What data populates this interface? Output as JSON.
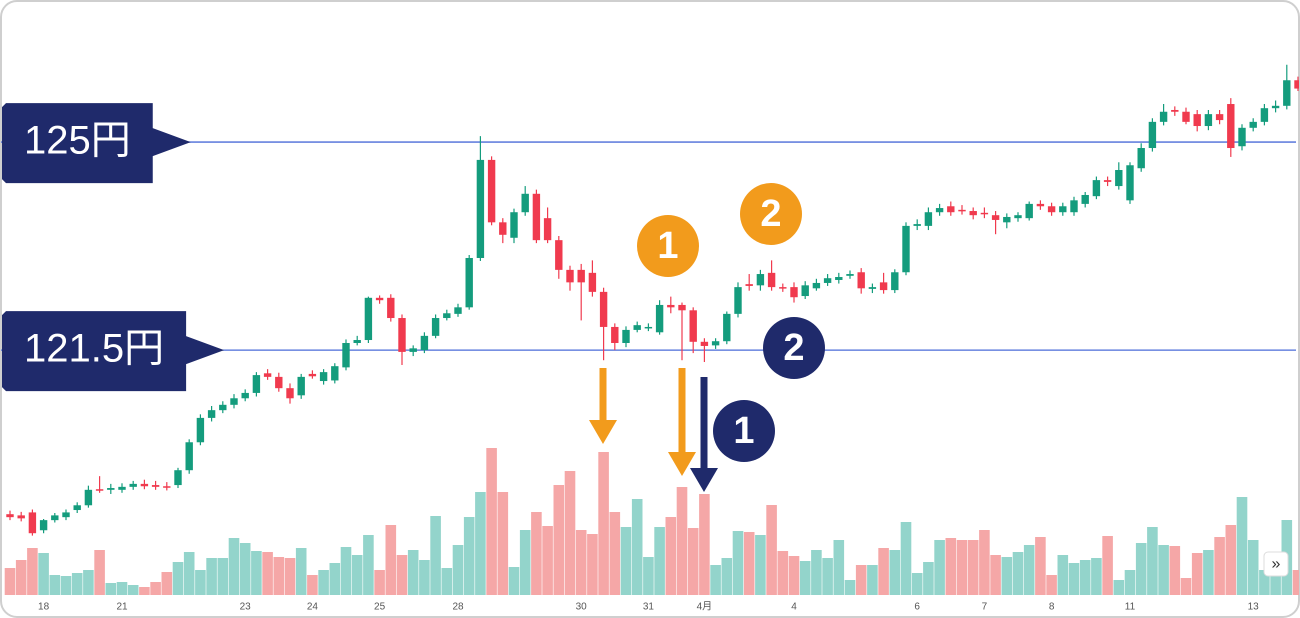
{
  "chart_data": {
    "type": "candlestick",
    "categories": [
      null,
      null,
      null,
      "18",
      null,
      null,
      null,
      null,
      null,
      null,
      "21",
      null,
      null,
      null,
      null,
      null,
      null,
      null,
      null,
      null,
      null,
      "23",
      null,
      null,
      null,
      null,
      null,
      "24",
      null,
      null,
      null,
      null,
      null,
      "25",
      null,
      null,
      null,
      null,
      null,
      null,
      "28",
      null,
      null,
      null,
      null,
      null,
      null,
      null,
      null,
      null,
      null,
      "30",
      null,
      null,
      null,
      null,
      null,
      "31",
      null,
      null,
      null,
      null,
      "4月",
      null,
      null,
      null,
      null,
      null,
      null,
      null,
      "4",
      null,
      null,
      null,
      null,
      null,
      null,
      null,
      null,
      null,
      null,
      "6",
      null,
      null,
      null,
      null,
      null,
      "7",
      null,
      null,
      null,
      null,
      null,
      "8",
      null,
      null,
      null,
      null,
      null,
      null,
      "11",
      null,
      null,
      null,
      null,
      null,
      null,
      null,
      null,
      null,
      null,
      "13",
      null,
      null,
      null,
      null
    ],
    "ohlc": [
      [
        118.74,
        118.8,
        118.64,
        118.69
      ],
      [
        118.72,
        118.78,
        118.62,
        118.67
      ],
      [
        118.77,
        118.82,
        118.38,
        118.42
      ],
      [
        118.47,
        118.66,
        118.42,
        118.64
      ],
      [
        118.64,
        118.76,
        118.6,
        118.72
      ],
      [
        118.69,
        118.82,
        118.64,
        118.77
      ],
      [
        118.81,
        118.94,
        118.76,
        118.89
      ],
      [
        118.89,
        119.22,
        118.85,
        119.15
      ],
      [
        119.16,
        119.38,
        119.1,
        119.15
      ],
      [
        119.15,
        119.25,
        119.08,
        119.18
      ],
      [
        119.15,
        119.26,
        119.1,
        119.2
      ],
      [
        119.2,
        119.3,
        119.15,
        119.25
      ],
      [
        119.25,
        119.32,
        119.16,
        119.21
      ],
      [
        119.23,
        119.3,
        119.15,
        119.2
      ],
      [
        119.21,
        119.28,
        119.14,
        119.2
      ],
      [
        119.23,
        119.52,
        119.18,
        119.48
      ],
      [
        119.48,
        120.0,
        119.42,
        119.95
      ],
      [
        119.95,
        120.42,
        119.9,
        120.36
      ],
      [
        120.36,
        120.56,
        120.3,
        120.49
      ],
      [
        120.49,
        120.64,
        120.44,
        120.58
      ],
      [
        120.58,
        120.76,
        120.52,
        120.69
      ],
      [
        120.69,
        120.84,
        120.64,
        120.78
      ],
      [
        120.78,
        121.13,
        120.72,
        121.08
      ],
      [
        121.11,
        121.18,
        121.0,
        121.05
      ],
      [
        121.05,
        121.12,
        120.8,
        120.86
      ],
      [
        120.86,
        120.94,
        120.6,
        120.69
      ],
      [
        120.74,
        121.1,
        120.68,
        121.05
      ],
      [
        121.1,
        121.16,
        121.02,
        121.06
      ],
      [
        120.98,
        121.18,
        120.92,
        121.13
      ],
      [
        120.99,
        121.28,
        120.94,
        121.23
      ],
      [
        121.21,
        121.68,
        121.16,
        121.62
      ],
      [
        121.62,
        121.74,
        121.58,
        121.67
      ],
      [
        121.67,
        122.4,
        121.62,
        122.38
      ],
      [
        122.38,
        122.42,
        122.28,
        122.34
      ],
      [
        122.38,
        122.44,
        121.98,
        122.04
      ],
      [
        122.04,
        122.1,
        121.25,
        121.47
      ],
      [
        121.47,
        121.58,
        121.4,
        121.53
      ],
      [
        121.5,
        121.8,
        121.45,
        121.74
      ],
      [
        121.74,
        122.1,
        121.7,
        122.04
      ],
      [
        122.04,
        122.18,
        122.0,
        122.12
      ],
      [
        122.11,
        122.28,
        122.06,
        122.22
      ],
      [
        122.22,
        123.1,
        122.18,
        123.05
      ],
      [
        123.05,
        125.1,
        123.0,
        124.7
      ],
      [
        124.7,
        124.76,
        123.6,
        123.65
      ],
      [
        123.65,
        123.72,
        123.3,
        123.44
      ],
      [
        123.39,
        123.88,
        123.3,
        123.82
      ],
      [
        123.82,
        124.26,
        123.76,
        124.13
      ],
      [
        124.13,
        124.2,
        123.3,
        123.35
      ],
      [
        123.72,
        123.9,
        123.3,
        123.35
      ],
      [
        123.35,
        123.42,
        122.7,
        122.85
      ],
      [
        122.85,
        122.92,
        122.5,
        122.64
      ],
      [
        122.85,
        122.95,
        122.0,
        122.64
      ],
      [
        122.8,
        123.01,
        122.4,
        122.48
      ],
      [
        122.48,
        122.55,
        121.33,
        121.89
      ],
      [
        121.89,
        121.95,
        121.5,
        121.62
      ],
      [
        121.62,
        121.9,
        121.55,
        121.84
      ],
      [
        121.84,
        121.98,
        121.8,
        121.92
      ],
      [
        121.87,
        121.95,
        121.82,
        121.89
      ],
      [
        121.8,
        122.34,
        121.76,
        122.26
      ],
      [
        122.26,
        122.4,
        122.12,
        122.22
      ],
      [
        122.26,
        122.3,
        121.33,
        122.17
      ],
      [
        122.17,
        122.22,
        121.45,
        121.64
      ],
      [
        121.64,
        121.7,
        121.3,
        121.57
      ],
      [
        121.58,
        121.7,
        121.52,
        121.65
      ],
      [
        121.65,
        122.15,
        121.6,
        122.11
      ],
      [
        122.11,
        122.64,
        122.05,
        122.56
      ],
      [
        122.61,
        122.78,
        122.5,
        122.58
      ],
      [
        122.59,
        122.85,
        122.5,
        122.78
      ],
      [
        122.8,
        123.01,
        122.5,
        122.56
      ],
      [
        122.56,
        122.62,
        122.48,
        122.54
      ],
      [
        122.56,
        122.64,
        122.3,
        122.39
      ],
      [
        122.41,
        122.66,
        122.36,
        122.59
      ],
      [
        122.54,
        122.7,
        122.5,
        122.63
      ],
      [
        122.63,
        122.78,
        122.58,
        122.71
      ],
      [
        122.68,
        122.8,
        122.62,
        122.73
      ],
      [
        122.75,
        122.84,
        122.7,
        122.78
      ],
      [
        122.81,
        122.88,
        122.45,
        122.54
      ],
      [
        122.53,
        122.62,
        122.46,
        122.56
      ],
      [
        122.64,
        122.8,
        122.45,
        122.51
      ],
      [
        122.51,
        122.86,
        122.46,
        122.81
      ],
      [
        122.81,
        123.65,
        122.76,
        123.59
      ],
      [
        123.59,
        123.7,
        123.52,
        123.62
      ],
      [
        123.59,
        123.9,
        123.52,
        123.82
      ],
      [
        123.82,
        123.96,
        123.76,
        123.89
      ],
      [
        123.92,
        124.0,
        123.76,
        123.82
      ],
      [
        123.86,
        123.94,
        123.78,
        123.84
      ],
      [
        123.84,
        123.9,
        123.7,
        123.77
      ],
      [
        123.81,
        123.9,
        123.72,
        123.79
      ],
      [
        123.77,
        123.84,
        123.45,
        123.69
      ],
      [
        123.65,
        123.8,
        123.55,
        123.74
      ],
      [
        123.72,
        123.82,
        123.66,
        123.77
      ],
      [
        123.72,
        124.0,
        123.68,
        123.96
      ],
      [
        123.96,
        124.02,
        123.86,
        123.92
      ],
      [
        123.92,
        123.98,
        123.76,
        123.82
      ],
      [
        123.82,
        123.98,
        123.76,
        123.92
      ],
      [
        123.82,
        124.08,
        123.76,
        124.02
      ],
      [
        123.96,
        124.16,
        123.9,
        124.11
      ],
      [
        124.09,
        124.42,
        124.04,
        124.36
      ],
      [
        124.36,
        124.42,
        124.26,
        124.33
      ],
      [
        124.26,
        124.66,
        124.2,
        124.53
      ],
      [
        124.02,
        124.66,
        123.96,
        124.61
      ],
      [
        124.56,
        124.98,
        124.5,
        124.9
      ],
      [
        124.9,
        125.4,
        124.84,
        125.34
      ],
      [
        125.34,
        125.64,
        125.28,
        125.51
      ],
      [
        125.54,
        125.6,
        125.44,
        125.51
      ],
      [
        125.51,
        125.58,
        125.3,
        125.34
      ],
      [
        125.47,
        125.54,
        125.18,
        125.27
      ],
      [
        125.27,
        125.54,
        125.2,
        125.47
      ],
      [
        125.47,
        125.54,
        125.3,
        125.37
      ],
      [
        125.64,
        125.74,
        124.75,
        124.9
      ],
      [
        124.93,
        125.3,
        124.86,
        125.24
      ],
      [
        125.24,
        125.4,
        125.18,
        125.34
      ],
      [
        125.34,
        125.64,
        125.28,
        125.57
      ],
      [
        125.57,
        125.7,
        125.5,
        125.61
      ],
      [
        125.61,
        126.3,
        125.55,
        126.04
      ],
      [
        126.04,
        126.1,
        125.86,
        125.9
      ]
    ],
    "volume": [
      27,
      35,
      47,
      42,
      20,
      19,
      22,
      25,
      45,
      12,
      13,
      10,
      8,
      13,
      23,
      33,
      43,
      25,
      37,
      37,
      57,
      52,
      44,
      43,
      38,
      37,
      47,
      20,
      25,
      32,
      48,
      40,
      60,
      25,
      70,
      40,
      45,
      35,
      79,
      27,
      50,
      78,
      103,
      147,
      103,
      28,
      65,
      83,
      69,
      110,
      124,
      65,
      61,
      143,
      83,
      68,
      96,
      38,
      68,
      78,
      108,
      67,
      101,
      30,
      37,
      64,
      63,
      60,
      90,
      44,
      39,
      34,
      45,
      37,
      55,
      15,
      30,
      30,
      47,
      45,
      73,
      22,
      33,
      55,
      57,
      55,
      55,
      65,
      40,
      38,
      43,
      50,
      58,
      20,
      40,
      32,
      35,
      37,
      59,
      15,
      25,
      52,
      68,
      50,
      49,
      17,
      42,
      45,
      58,
      70,
      98,
      55,
      25,
      25,
      75,
      25
    ],
    "ylim": [
      118.39,
      127.39
    ],
    "volume_ylim": [
      0,
      160
    ],
    "up_color": "#149c7d",
    "down_color": "#f03a4e",
    "volume_up_color": "#93d4cb",
    "volume_down_color": "#f5a7a7",
    "levels": [
      {
        "value": 125,
        "label": "125円"
      },
      {
        "value": 121.5,
        "label": "121.5円"
      }
    ],
    "level_color": "#4a6bd8"
  },
  "annotations": {
    "orange": [
      "1",
      "2"
    ],
    "navy": [
      "1",
      "2"
    ]
  },
  "more_button": "»"
}
